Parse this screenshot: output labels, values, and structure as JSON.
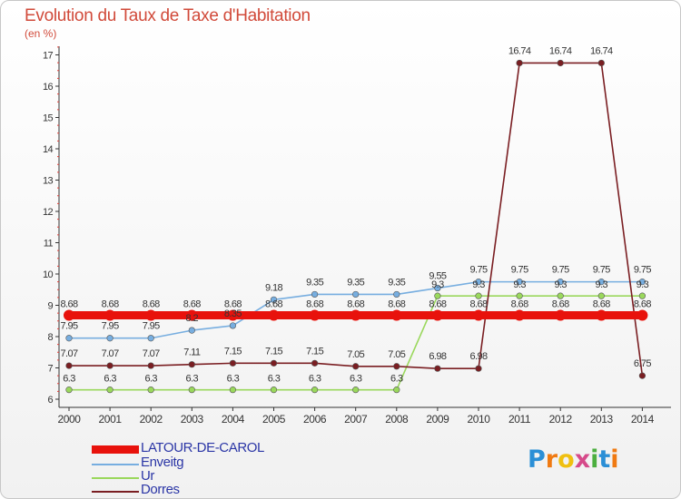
{
  "title": "Evolution du Taux de Taxe d'Habitation",
  "unit_label": "(en %)",
  "brand": {
    "letters": [
      "P",
      "r",
      "o",
      "x",
      "i",
      "t",
      "i"
    ],
    "colors": [
      "#2b8fd6",
      "#f07a12",
      "#f0c010",
      "#d64a8a",
      "#4caf3f",
      "#2b8fd6",
      "#f07a12"
    ]
  },
  "chart_data": {
    "type": "line",
    "title": "Evolution du Taux de Taxe d'Habitation",
    "ylabel": "(en %)",
    "xlabel": "",
    "x": [
      "2000",
      "2001",
      "2002",
      "2003",
      "2004",
      "2005",
      "2006",
      "2007",
      "2008",
      "2009",
      "2010",
      "2011",
      "2012",
      "2013",
      "2014"
    ],
    "ylim": [
      6,
      17
    ],
    "yticks": [
      "6",
      "7",
      "8",
      "9",
      "10",
      "11",
      "12",
      "13",
      "14",
      "15",
      "16",
      "17"
    ],
    "grid": false,
    "series": [
      {
        "name": "LATOUR-DE-CAROL",
        "color": "#e8120c",
        "values": [
          8.68,
          8.68,
          8.68,
          8.68,
          8.68,
          8.68,
          8.68,
          8.68,
          8.68,
          8.68,
          8.68,
          8.68,
          8.68,
          8.68,
          8.68
        ],
        "labels": [
          "8.68",
          "8.68",
          "8.68",
          "8.68",
          "8.68",
          "8.68",
          "8.68",
          "8.68",
          "8.68",
          "8.68",
          "8.68",
          "8.68",
          "8.68",
          "8.68",
          "8.68"
        ]
      },
      {
        "name": "Enveitg",
        "color": "#77aee0",
        "values": [
          7.95,
          7.95,
          7.95,
          8.2,
          8.35,
          9.18,
          9.35,
          9.35,
          9.35,
          9.55,
          9.75,
          9.75,
          9.75,
          9.75,
          9.75
        ],
        "labels": [
          "7.95",
          "7.95",
          "7.95",
          "8.2",
          "8.35",
          "9.18",
          "9.35",
          "9.35",
          "9.35",
          "9.55",
          "9.75",
          "9.75",
          "9.75",
          "9.75",
          "9.75"
        ]
      },
      {
        "name": "Ur",
        "color": "#9ad85c",
        "values": [
          6.3,
          6.3,
          6.3,
          6.3,
          6.3,
          6.3,
          6.3,
          6.3,
          6.3,
          9.3,
          9.3,
          9.3,
          9.3,
          9.3,
          9.3
        ],
        "labels": [
          "6.3",
          "6.3",
          "6.3",
          "6.3",
          "6.3",
          "6.3",
          "6.3",
          "6.3",
          "6.3",
          "9.3",
          "9.3",
          "9.3",
          "9.3",
          "9.3",
          "9.3"
        ]
      },
      {
        "name": "Dorres",
        "color": "#7a1e22",
        "values": [
          7.07,
          7.07,
          7.07,
          7.11,
          7.15,
          7.15,
          7.15,
          7.05,
          7.05,
          6.98,
          6.98,
          16.74,
          16.74,
          16.74,
          6.75
        ],
        "labels": [
          "7.07",
          "7.07",
          "7.07",
          "7.11",
          "7.15",
          "7.15",
          "7.15",
          "7.05",
          "7.05",
          "6.98",
          "6.98",
          "16.74",
          "16.74",
          "16.74",
          "6.75"
        ]
      }
    ]
  }
}
